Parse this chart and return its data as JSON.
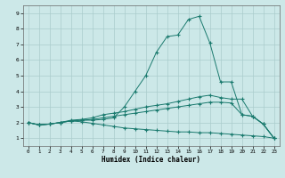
{
  "xlabel": "Humidex (Indice chaleur)",
  "bg_color": "#cce8e8",
  "line_color": "#1a7a6e",
  "grid_color": "#aacccc",
  "xlim": [
    -0.5,
    23.5
  ],
  "ylim": [
    0.5,
    9.5
  ],
  "xticks": [
    0,
    1,
    2,
    3,
    4,
    5,
    6,
    7,
    8,
    9,
    10,
    11,
    12,
    13,
    14,
    15,
    16,
    17,
    18,
    19,
    20,
    21,
    22,
    23
  ],
  "yticks": [
    1,
    2,
    3,
    4,
    5,
    6,
    7,
    8,
    9
  ],
  "lines": [
    {
      "x": [
        0,
        1,
        2,
        3,
        4,
        5,
        6,
        7,
        8,
        9,
        10,
        11,
        12,
        13,
        14,
        15,
        16,
        17,
        18,
        19,
        20,
        21,
        22,
        23
      ],
      "y": [
        2.0,
        1.85,
        1.9,
        2.0,
        2.1,
        2.15,
        2.15,
        2.2,
        2.3,
        3.0,
        4.0,
        5.0,
        6.5,
        7.5,
        7.6,
        8.6,
        8.8,
        7.1,
        4.6,
        4.6,
        2.5,
        2.4,
        1.9,
        1.0
      ]
    },
    {
      "x": [
        0,
        1,
        2,
        3,
        4,
        5,
        6,
        7,
        8,
        9,
        10,
        11,
        12,
        13,
        14,
        15,
        16,
        17,
        18,
        19,
        20,
        21,
        22,
        23
      ],
      "y": [
        2.0,
        1.85,
        1.9,
        2.0,
        2.15,
        2.2,
        2.3,
        2.5,
        2.6,
        2.7,
        2.85,
        3.0,
        3.1,
        3.2,
        3.35,
        3.5,
        3.65,
        3.75,
        3.6,
        3.5,
        3.5,
        2.4,
        1.9,
        1.0
      ]
    },
    {
      "x": [
        0,
        1,
        2,
        3,
        4,
        5,
        6,
        7,
        8,
        9,
        10,
        11,
        12,
        13,
        14,
        15,
        16,
        17,
        18,
        19,
        20,
        21,
        22,
        23
      ],
      "y": [
        2.0,
        1.85,
        1.9,
        2.0,
        2.1,
        2.15,
        2.2,
        2.3,
        2.4,
        2.5,
        2.6,
        2.7,
        2.8,
        2.9,
        3.0,
        3.1,
        3.2,
        3.3,
        3.3,
        3.25,
        2.5,
        2.4,
        1.9,
        1.0
      ]
    },
    {
      "x": [
        0,
        1,
        2,
        3,
        4,
        5,
        6,
        7,
        8,
        9,
        10,
        11,
        12,
        13,
        14,
        15,
        16,
        17,
        18,
        19,
        20,
        21,
        22,
        23
      ],
      "y": [
        2.0,
        1.85,
        1.9,
        2.0,
        2.1,
        2.05,
        1.95,
        1.85,
        1.75,
        1.65,
        1.6,
        1.55,
        1.5,
        1.45,
        1.4,
        1.4,
        1.35,
        1.35,
        1.3,
        1.25,
        1.2,
        1.15,
        1.1,
        1.0
      ]
    }
  ]
}
